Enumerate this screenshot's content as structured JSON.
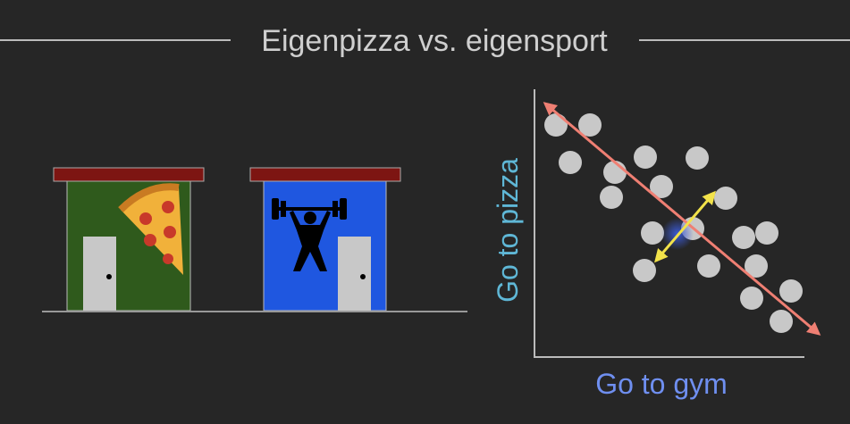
{
  "header": {
    "title": "Eigenpizza vs. eigensport"
  },
  "plot": {
    "x_label": "Go to gym",
    "y_label": "Go to pizza"
  }
}
